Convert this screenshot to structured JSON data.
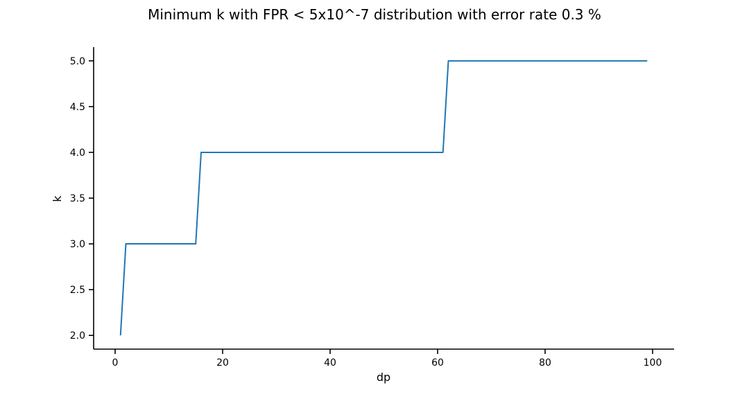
{
  "chart_data": {
    "type": "line",
    "title": "Minimum k with FPR < 5x10^-7 distribution with error rate 0.3 %",
    "xlabel": "dp",
    "ylabel": "k",
    "xlim": [
      -4,
      104
    ],
    "ylim": [
      1.85,
      5.15
    ],
    "xticks": [
      0,
      20,
      40,
      60,
      80,
      100
    ],
    "xtick_labels": [
      "0",
      "20",
      "40",
      "60",
      "80",
      "100"
    ],
    "yticks": [
      2.0,
      2.5,
      3.0,
      3.5,
      4.0,
      4.5,
      5.0
    ],
    "ytick_labels": [
      "2.0",
      "2.5",
      "3.0",
      "3.5",
      "4.0",
      "4.5",
      "5.0"
    ],
    "grid": false,
    "series": [
      {
        "color": "#1f77b4",
        "x": [
          1,
          2,
          3,
          4,
          5,
          6,
          7,
          8,
          9,
          10,
          11,
          12,
          13,
          14,
          15,
          16,
          17,
          18,
          19,
          20,
          21,
          22,
          23,
          24,
          25,
          26,
          27,
          28,
          29,
          30,
          31,
          32,
          33,
          34,
          35,
          36,
          37,
          38,
          39,
          40,
          41,
          42,
          43,
          44,
          45,
          46,
          47,
          48,
          49,
          50,
          51,
          52,
          53,
          54,
          55,
          56,
          57,
          58,
          59,
          60,
          61,
          62,
          63,
          64,
          65,
          66,
          67,
          68,
          69,
          70,
          71,
          72,
          73,
          74,
          75,
          76,
          77,
          78,
          79,
          80,
          81,
          82,
          83,
          84,
          85,
          86,
          87,
          88,
          89,
          90,
          91,
          92,
          93,
          94,
          95,
          96,
          97,
          98,
          99
        ],
        "y": [
          2,
          3,
          3,
          3,
          3,
          3,
          3,
          3,
          3,
          3,
          3,
          3,
          3,
          3,
          3,
          4,
          4,
          4,
          4,
          4,
          4,
          4,
          4,
          4,
          4,
          4,
          4,
          4,
          4,
          4,
          4,
          4,
          4,
          4,
          4,
          4,
          4,
          4,
          4,
          4,
          4,
          4,
          4,
          4,
          4,
          4,
          4,
          4,
          4,
          4,
          4,
          4,
          4,
          4,
          4,
          4,
          4,
          4,
          4,
          4,
          4,
          5,
          5,
          5,
          5,
          5,
          5,
          5,
          5,
          5,
          5,
          5,
          5,
          5,
          5,
          5,
          5,
          5,
          5,
          5,
          5,
          5,
          5,
          5,
          5,
          5,
          5,
          5,
          5,
          5,
          5,
          5,
          5,
          5,
          5,
          5,
          5,
          5,
          5
        ]
      }
    ]
  }
}
